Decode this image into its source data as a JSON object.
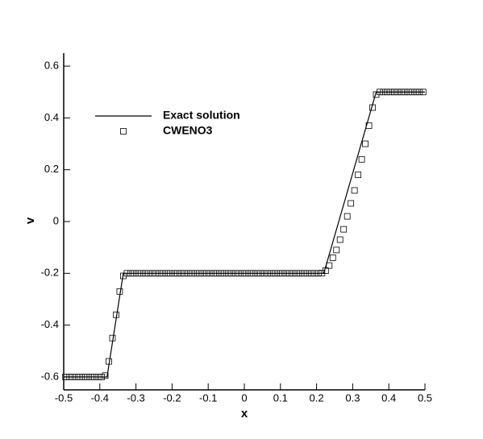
{
  "chart_data": {
    "type": "line",
    "xlabel": "x",
    "ylabel": "v",
    "xlim": [
      -0.5,
      0.5
    ],
    "ylim": [
      -0.65,
      0.65
    ],
    "xticks": [
      -0.5,
      -0.4,
      -0.3,
      -0.2,
      -0.1,
      0,
      0.1,
      0.2,
      0.3,
      0.4,
      0.5
    ],
    "yticks": [
      -0.6,
      -0.4,
      -0.2,
      0,
      0.2,
      0.4,
      0.6
    ],
    "legend": "upper left",
    "series": [
      {
        "name": "Exact solution",
        "color": "#000000",
        "style": "line",
        "x": [
          -0.5,
          -0.38,
          -0.335,
          0.22,
          0.365,
          0.5
        ],
        "values": [
          -0.6,
          -0.6,
          -0.2,
          -0.2,
          0.5,
          0.5
        ]
      },
      {
        "name": "CWENO3",
        "color": "#000000",
        "style": "markers",
        "x": [
          -0.495,
          -0.485,
          -0.475,
          -0.465,
          -0.455,
          -0.445,
          -0.435,
          -0.425,
          -0.415,
          -0.405,
          -0.395,
          -0.385,
          -0.375,
          -0.365,
          -0.355,
          -0.345,
          -0.335,
          -0.325,
          -0.315,
          -0.305,
          -0.295,
          -0.285,
          -0.275,
          -0.265,
          -0.255,
          -0.245,
          -0.235,
          -0.225,
          -0.215,
          -0.205,
          -0.195,
          -0.185,
          -0.175,
          -0.165,
          -0.155,
          -0.145,
          -0.135,
          -0.125,
          -0.115,
          -0.105,
          -0.095,
          -0.085,
          -0.075,
          -0.065,
          -0.055,
          -0.045,
          -0.035,
          -0.025,
          -0.015,
          -0.005,
          0.005,
          0.015,
          0.025,
          0.035,
          0.045,
          0.055,
          0.065,
          0.075,
          0.085,
          0.095,
          0.105,
          0.115,
          0.125,
          0.135,
          0.145,
          0.155,
          0.165,
          0.175,
          0.185,
          0.195,
          0.205,
          0.215,
          0.225,
          0.235,
          0.245,
          0.255,
          0.265,
          0.275,
          0.285,
          0.295,
          0.305,
          0.315,
          0.325,
          0.335,
          0.345,
          0.355,
          0.365,
          0.375,
          0.385,
          0.395,
          0.405,
          0.415,
          0.425,
          0.435,
          0.445,
          0.455,
          0.465,
          0.475,
          0.485,
          0.495
        ],
        "values": [
          -0.6,
          -0.6,
          -0.6,
          -0.6,
          -0.6,
          -0.6,
          -0.6,
          -0.6,
          -0.6,
          -0.6,
          -0.6,
          -0.595,
          -0.54,
          -0.45,
          -0.36,
          -0.27,
          -0.21,
          -0.2,
          -0.2,
          -0.2,
          -0.2,
          -0.2,
          -0.2,
          -0.2,
          -0.2,
          -0.2,
          -0.2,
          -0.2,
          -0.2,
          -0.2,
          -0.2,
          -0.2,
          -0.2,
          -0.2,
          -0.2,
          -0.2,
          -0.2,
          -0.2,
          -0.2,
          -0.2,
          -0.2,
          -0.2,
          -0.2,
          -0.2,
          -0.2,
          -0.2,
          -0.2,
          -0.2,
          -0.2,
          -0.2,
          -0.2,
          -0.2,
          -0.2,
          -0.2,
          -0.2,
          -0.2,
          -0.2,
          -0.2,
          -0.2,
          -0.2,
          -0.2,
          -0.2,
          -0.2,
          -0.2,
          -0.2,
          -0.2,
          -0.2,
          -0.2,
          -0.2,
          -0.2,
          -0.2,
          -0.199,
          -0.19,
          -0.17,
          -0.14,
          -0.11,
          -0.07,
          -0.03,
          0.02,
          0.07,
          0.12,
          0.18,
          0.24,
          0.3,
          0.37,
          0.44,
          0.49,
          0.5,
          0.5,
          0.5,
          0.5,
          0.5,
          0.5,
          0.5,
          0.5,
          0.5,
          0.5,
          0.5,
          0.5,
          0.5
        ]
      }
    ]
  }
}
